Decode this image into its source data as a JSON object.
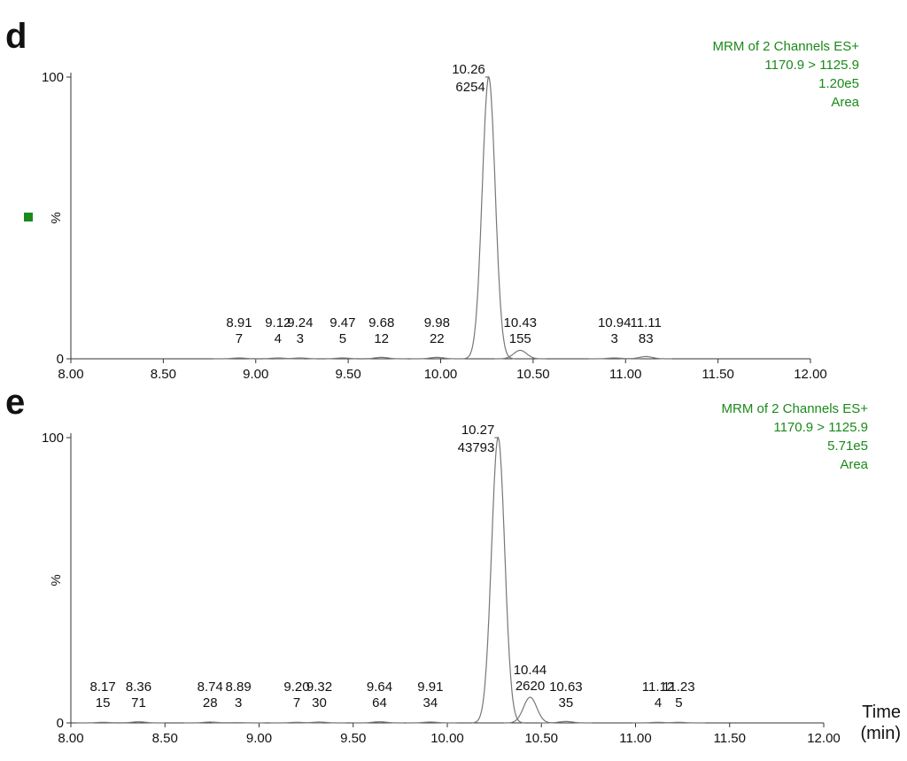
{
  "chart_data": [
    {
      "type": "chromatogram",
      "panel_label": "d",
      "header": [
        "MRM of 2 Channels ES+",
        "1170.9 > 1125.9",
        "1.20e5",
        "Area"
      ],
      "y_label": "%",
      "xlim": [
        8,
        12
      ],
      "xticks": [
        {
          "value": 8,
          "label": "8.00"
        },
        {
          "value": 8.5,
          "label": "8.50"
        },
        {
          "value": 9,
          "label": "9.00"
        },
        {
          "value": 9.5,
          "label": "9.50"
        },
        {
          "value": 10,
          "label": "10.00"
        },
        {
          "value": 10.5,
          "label": "10.50"
        },
        {
          "value": 11,
          "label": "11.00"
        },
        {
          "value": 11.5,
          "label": "11.50"
        },
        {
          "value": 12,
          "label": "12.00"
        }
      ],
      "ylim": [
        0,
        100
      ],
      "yticks": [
        0,
        100
      ],
      "peaks": {
        "x": [
          8.91,
          9.12,
          9.24,
          9.47,
          9.68,
          9.98,
          10.26,
          10.43,
          10.94,
          11.11
        ],
        "heights": [
          0.3,
          0.3,
          0.3,
          0.3,
          0.5,
          0.5,
          100,
          3,
          0.3,
          0.8
        ],
        "areas": [
          7,
          4,
          3,
          5,
          12,
          22,
          6254,
          155,
          3,
          83
        ]
      },
      "color": "#777777",
      "header_color": "#1a8a1a"
    },
    {
      "type": "chromatogram",
      "panel_label": "e",
      "header": [
        "MRM of 2 Channels ES+",
        "1170.9 > 1125.9",
        "5.71e5",
        "Area"
      ],
      "y_label": "%",
      "x_label": [
        "Time",
        "(min)"
      ],
      "xlim": [
        8,
        12
      ],
      "xticks": [
        {
          "value": 8,
          "label": "8.00"
        },
        {
          "value": 8.5,
          "label": "8.50"
        },
        {
          "value": 9,
          "label": "9.00"
        },
        {
          "value": 9.5,
          "label": "9.50"
        },
        {
          "value": 10,
          "label": "10.00"
        },
        {
          "value": 10.5,
          "label": "10.50"
        },
        {
          "value": 11,
          "label": "11.00"
        },
        {
          "value": 11.5,
          "label": "11.50"
        },
        {
          "value": 12,
          "label": "12.00"
        }
      ],
      "ylim": [
        0,
        100
      ],
      "yticks": [
        0,
        100
      ],
      "peaks": {
        "x": [
          8.17,
          8.36,
          8.74,
          8.89,
          {
            "value": 9.2,
            "label": "9.20"
          },
          9.32,
          9.64,
          9.91,
          10.27,
          10.44,
          10.63,
          11.12,
          11.23
        ],
        "heights": [
          0.2,
          0.4,
          0.3,
          0.1,
          0.2,
          0.3,
          0.4,
          0.3,
          100,
          9,
          0.5,
          0.2,
          0.2
        ],
        "areas": [
          15,
          71,
          28,
          3,
          7,
          30,
          64,
          34,
          43793,
          2620,
          35,
          4,
          5
        ]
      },
      "color": "#777777",
      "header_color": "#1a8a1a"
    }
  ]
}
